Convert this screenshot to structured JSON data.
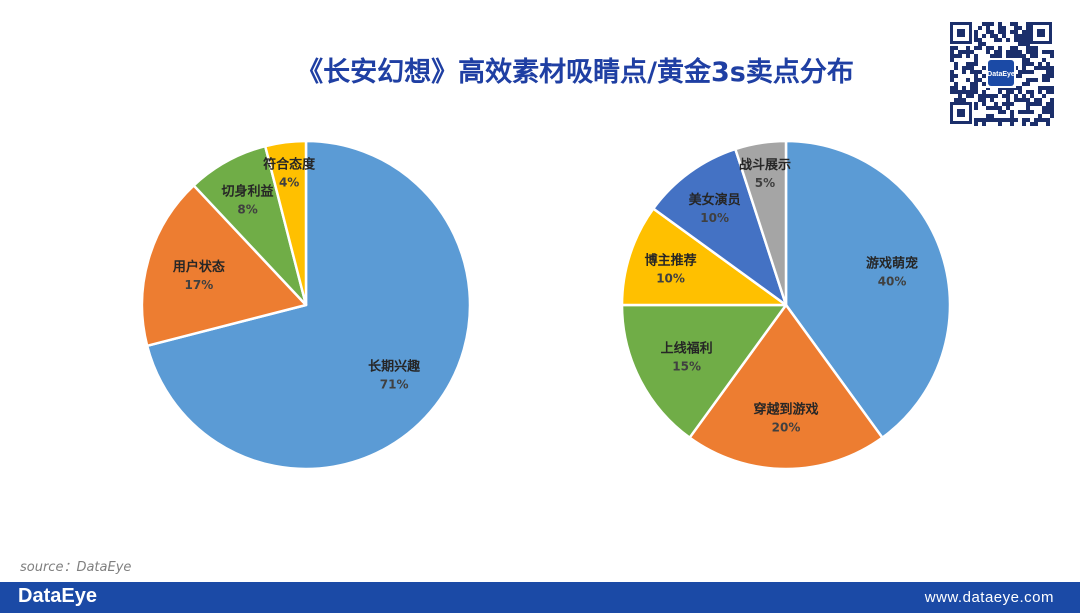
{
  "title": "《长安幻想》高效素材吸睛点/黄金3s卖点分布",
  "qr": {
    "logo_text": "DataEye"
  },
  "chart_data": [
    {
      "type": "pie",
      "title": "",
      "labels": [
        "长期兴趣",
        "用户状态",
        "切身利益",
        "符合态度"
      ],
      "values": [
        71,
        17,
        8,
        4
      ],
      "value_labels": [
        "71%",
        "17%",
        "8%",
        "4%"
      ],
      "colors": [
        "#5b9bd5",
        "#ed7d31",
        "#70ad47",
        "#ffc000"
      ],
      "start_angle": "12 o'clock",
      "direction": "clockwise"
    },
    {
      "type": "pie",
      "title": "",
      "labels": [
        "游戏萌宠",
        "穿越到游戏",
        "上线福利",
        "博主推荐",
        "美女演员",
        "战斗展示"
      ],
      "values": [
        40,
        20,
        15,
        10,
        10,
        5
      ],
      "value_labels": [
        "40%",
        "20%",
        "15%",
        "10%",
        "10%",
        "5%"
      ],
      "colors": [
        "#5b9bd5",
        "#ed7d31",
        "#70ad47",
        "#ffc000",
        "#4472c4",
        "#a5a5a5"
      ],
      "start_angle": "12 o'clock",
      "direction": "clockwise"
    }
  ],
  "source": "source：DataEye",
  "footer": {
    "brand": "DataEye",
    "url": "www.dataeye.com"
  }
}
